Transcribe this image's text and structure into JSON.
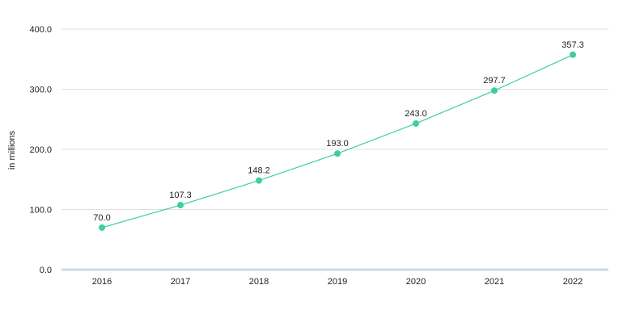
{
  "chart_data": {
    "type": "line",
    "title": "",
    "xlabel": "",
    "ylabel": "in millions",
    "categories": [
      "2016",
      "2017",
      "2018",
      "2019",
      "2020",
      "2021",
      "2022"
    ],
    "series": [
      {
        "values": [
          70.0,
          107.3,
          148.2,
          193.0,
          243.0,
          297.7,
          357.3
        ],
        "labels": [
          "70.0",
          "107.3",
          "148.2",
          "193.0",
          "243.0",
          "297.7",
          "357.3"
        ]
      }
    ],
    "ylim": [
      0,
      400
    ],
    "yticks": [
      0,
      100,
      200,
      300,
      400
    ],
    "ytick_labels": [
      "0.0",
      "100.0",
      "200.0",
      "300.0",
      "400.0"
    ],
    "grid": true,
    "legend": "none",
    "colors": {
      "series": "#3ecf9a",
      "grid": "#e0e0e0",
      "baseline": "#cfd8e2",
      "text": "#222222"
    }
  }
}
